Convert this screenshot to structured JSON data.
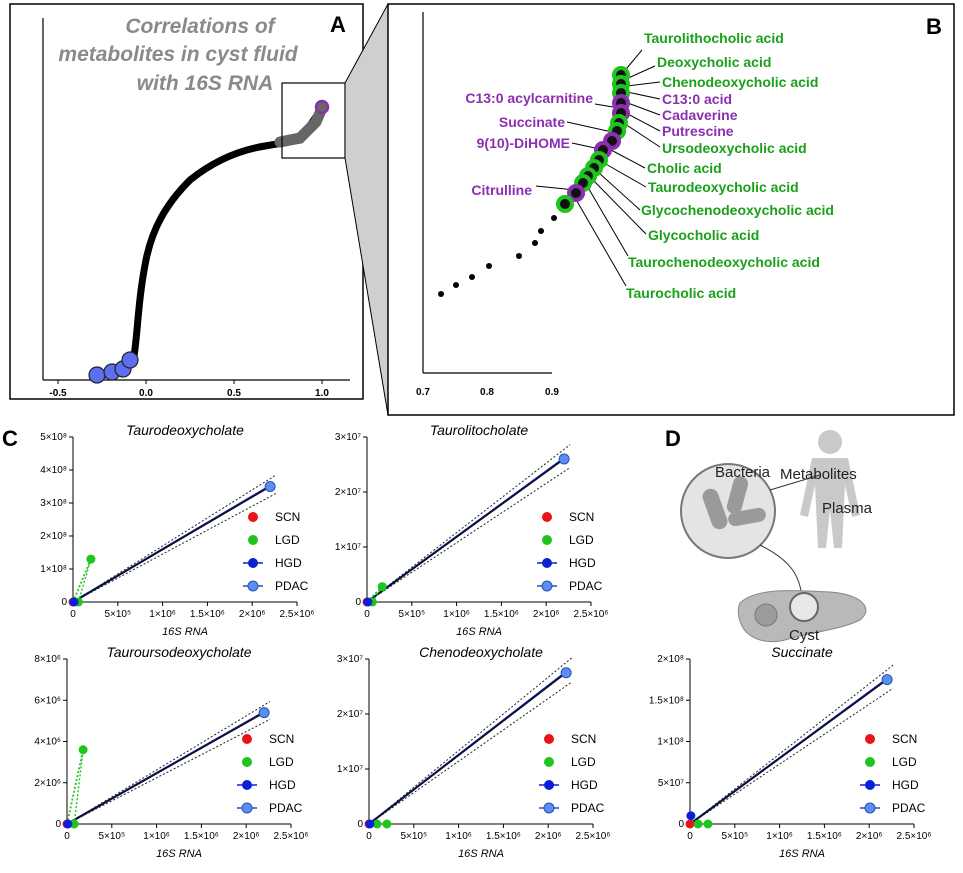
{
  "panel_letters": {
    "a": "A",
    "b": "B",
    "c": "C",
    "d": "D"
  },
  "panel_a": {
    "title_lines": [
      "Correlations of",
      "metabolites in cyst fluid",
      "with 16S RNA"
    ],
    "x_ticks": [
      "-0.5",
      "0.0",
      "0.5",
      "1.0"
    ]
  },
  "panel_b": {
    "x_ticks": [
      "0.7",
      "0.8",
      "0.9"
    ],
    "green_labels": [
      "Taurolithocholic acid",
      "Deoxycholic acid",
      "Chenodeoxycholic acid",
      "Ursodeoxycholic acid",
      "Cholic acid",
      "Taurodeoxycholic acid",
      "Glycochenodeoxycholic acid",
      "Glycocholic acid",
      "Taurochenodeoxycholic acid",
      "Taurocholic acid"
    ],
    "purple_labels_right": [
      "C13:0 acid",
      "Cadaverine",
      "Putrescine"
    ],
    "purple_labels_left": [
      "C13:0 acylcarnitine",
      "Succinate",
      "9(10)-DiHOME",
      "Citrulline"
    ]
  },
  "panel_d": {
    "labels": {
      "bacteria": "Bacteria",
      "metabolites": "Metabolites",
      "plasma": "Plasma",
      "cyst": "Cyst"
    }
  },
  "legend": [
    "SCN",
    "LGD",
    "HGD",
    "PDAC"
  ],
  "colors": {
    "SCN": "#e8131a",
    "LGD": "#1fc41f",
    "HGD": "#0a20d8",
    "PDAC": "#5b8fef",
    "fit": "#111111",
    "green_text": "#1aa01a",
    "purple_text": "#8b2fb0",
    "ring_green": "#1fc41f",
    "ring_purple": "#8b2fb0",
    "gray_point": "#666666"
  },
  "chart_data": [
    {
      "type": "scatter",
      "panel": "A",
      "title": "Correlations of metabolites in cyst fluid with 16S RNA",
      "xlim": [
        -0.6,
        1.1
      ],
      "x_ticks": [
        -0.5,
        0.0,
        0.5,
        1.0
      ],
      "description_points": "sorted correlation coefficients rising from about -0.3 to 1.0"
    },
    {
      "type": "scatter",
      "panel": "B",
      "xlim": [
        0.7,
        0.95
      ],
      "x_ticks": [
        0.7,
        0.8,
        0.9
      ]
    },
    {
      "type": "scatter",
      "title": "Taurodeoxycholate",
      "xlabel": "16S RNA",
      "xlim": [
        0,
        2500000
      ],
      "ylim": [
        0,
        500000000
      ],
      "x_ticks": [
        "0",
        "5×10⁵",
        "1×10⁶",
        "1.5×10⁶",
        "2×10⁶",
        "2.5×10⁶"
      ],
      "y_ticks": [
        "0",
        "1×10⁸",
        "2×10⁸",
        "3×10⁸",
        "4×10⁸",
        "5×10⁸"
      ],
      "series": [
        {
          "name": "SCN",
          "x": [
            0
          ],
          "y": [
            0
          ]
        },
        {
          "name": "LGD",
          "x": [
            60000,
            200000
          ],
          "y": [
            0,
            130000000
          ]
        },
        {
          "name": "HGD",
          "x": [
            10000
          ],
          "y": [
            0
          ]
        },
        {
          "name": "PDAC",
          "x": [
            2200000
          ],
          "y": [
            350000000
          ]
        }
      ]
    },
    {
      "type": "scatter",
      "title": "Taurolitocholate",
      "xlabel": "16S RNA",
      "xlim": [
        0,
        2500000
      ],
      "ylim": [
        0,
        30000000
      ],
      "x_ticks": [
        "0",
        "5×10⁵",
        "1×10⁶",
        "1.5×10⁶",
        "2×10⁶",
        "2.5×10⁶"
      ],
      "y_ticks": [
        "0",
        "1×10⁷",
        "2×10⁷",
        "3×10⁷"
      ],
      "series": [
        {
          "name": "SCN",
          "x": [
            0
          ],
          "y": [
            0
          ]
        },
        {
          "name": "LGD",
          "x": [
            60000,
            170000
          ],
          "y": [
            0,
            2800000
          ]
        },
        {
          "name": "HGD",
          "x": [
            10000
          ],
          "y": [
            0
          ]
        },
        {
          "name": "PDAC",
          "x": [
            2200000
          ],
          "y": [
            26000000
          ]
        }
      ]
    },
    {
      "type": "scatter",
      "title": "Tauroursodeoxycholate",
      "xlabel": "16S RNA",
      "xlim": [
        0,
        2500000
      ],
      "ylim": [
        0,
        8000000
      ],
      "x_ticks": [
        "0",
        "5×10⁵",
        "1×10⁶",
        "1.5×10⁶",
        "2×10⁶",
        "2.5×10⁶"
      ],
      "y_ticks": [
        "0",
        "2×10⁶",
        "4×10⁶",
        "6×10⁶",
        "8×10⁶"
      ],
      "series": [
        {
          "name": "SCN",
          "x": [
            0
          ],
          "y": [
            0
          ]
        },
        {
          "name": "LGD",
          "x": [
            80000,
            180000
          ],
          "y": [
            0,
            3600000
          ]
        },
        {
          "name": "HGD",
          "x": [
            10000
          ],
          "y": [
            0
          ]
        },
        {
          "name": "PDAC",
          "x": [
            2200000
          ],
          "y": [
            5400000
          ]
        }
      ]
    },
    {
      "type": "scatter",
      "title": "Chenodeoxycholate",
      "xlabel": "16S RNA",
      "xlim": [
        0,
        2500000
      ],
      "ylim": [
        0,
        30000000
      ],
      "x_ticks": [
        "0",
        "5×10⁵",
        "1×10⁶",
        "1.5×10⁶",
        "2×10⁶",
        "2.5×10⁶"
      ],
      "y_ticks": [
        "0",
        "1×10⁷",
        "2×10⁷",
        "3×10⁷"
      ],
      "series": [
        {
          "name": "SCN",
          "x": [
            0
          ],
          "y": [
            0
          ]
        },
        {
          "name": "LGD",
          "x": [
            90000,
            200000
          ],
          "y": [
            0,
            0
          ]
        },
        {
          "name": "HGD",
          "x": [
            10000
          ],
          "y": [
            0
          ]
        },
        {
          "name": "PDAC",
          "x": [
            2200000
          ],
          "y": [
            27500000
          ]
        }
      ]
    },
    {
      "type": "scatter",
      "title": "Succinate",
      "xlabel": "16S RNA",
      "xlim": [
        0,
        2500000
      ],
      "ylim": [
        0,
        200000000
      ],
      "x_ticks": [
        "0",
        "5×10⁵",
        "1×10⁶",
        "1.5×10⁶",
        "2×10⁶",
        "2.5×10⁶"
      ],
      "y_ticks": [
        "0",
        "5×10⁷",
        "1×10⁸",
        "1.5×10⁸",
        "2×10⁸"
      ],
      "series": [
        {
          "name": "SCN",
          "x": [
            0
          ],
          "y": [
            0
          ]
        },
        {
          "name": "LGD",
          "x": [
            90000,
            200000
          ],
          "y": [
            0,
            0
          ]
        },
        {
          "name": "HGD",
          "x": [
            10000
          ],
          "y": [
            10000000
          ]
        },
        {
          "name": "PDAC",
          "x": [
            2200000
          ],
          "y": [
            175000000
          ]
        }
      ]
    }
  ]
}
